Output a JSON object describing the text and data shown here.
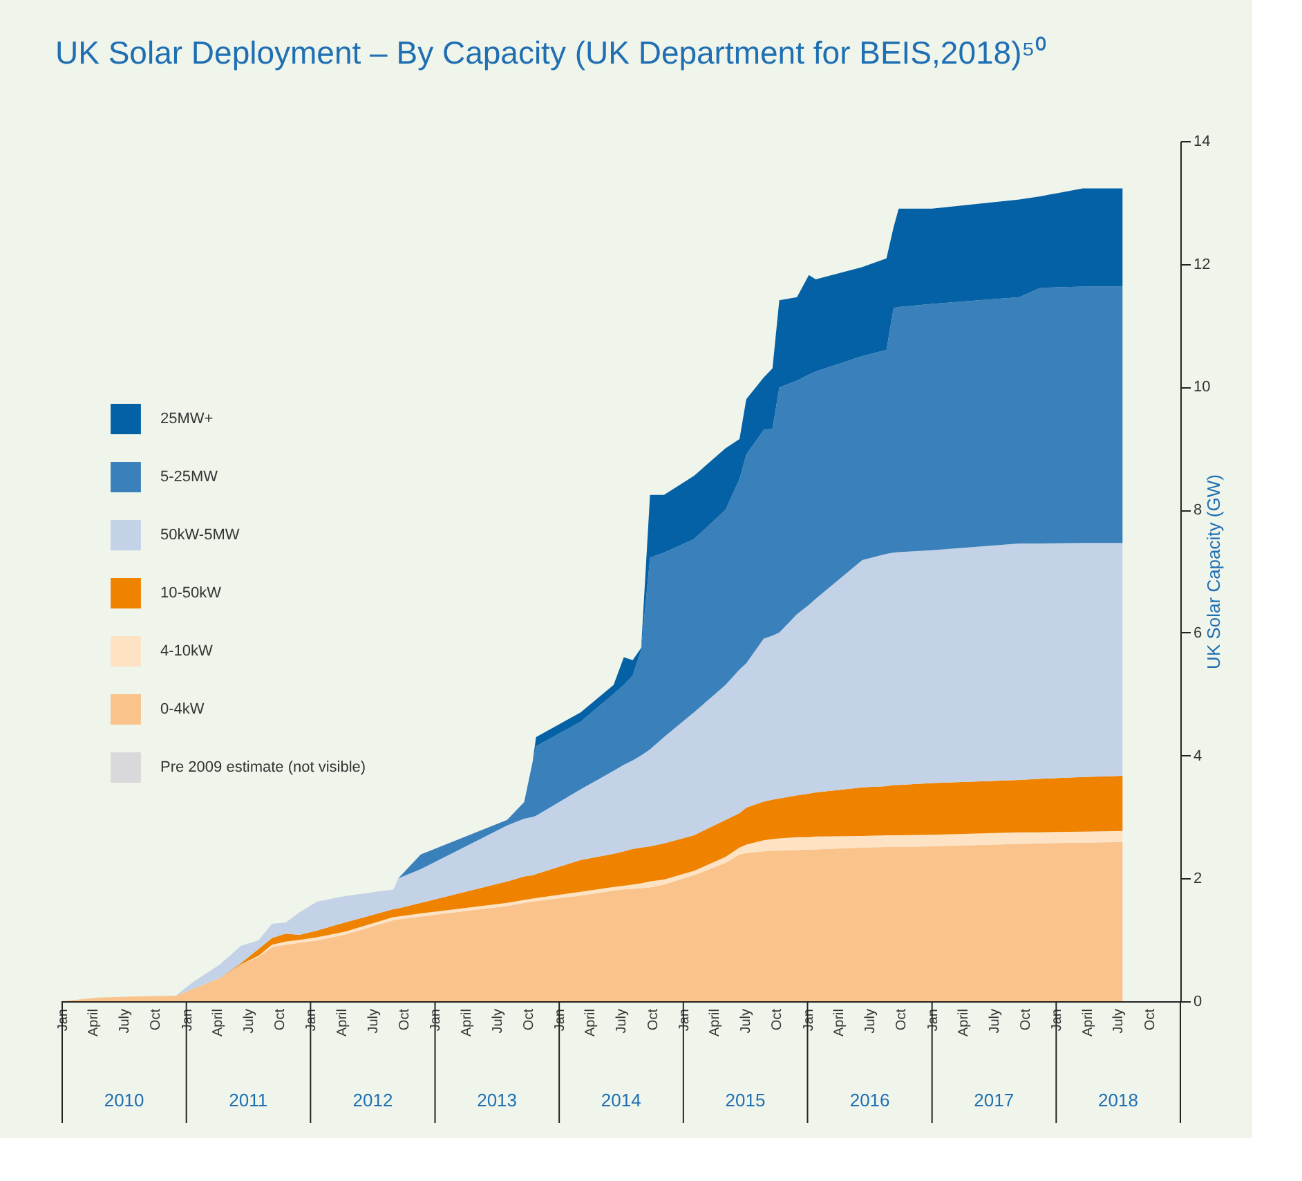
{
  "chart_data": {
    "type": "area",
    "stacked": true,
    "title": "UK Solar Deployment – By Capacity (UK Department for BEIS,2018)⁵⁰",
    "ylabel": "UK Solar Capacity (GW)",
    "x": [
      "2010-01-01",
      "2010-04-15",
      "2010-08-15",
      "2010-12-01",
      "2011-01-20",
      "2011-04-10",
      "2011-06-10",
      "2011-08-01",
      "2011-09-10",
      "2011-10-20",
      "2011-11-30",
      "2012-01-20",
      "2012-04-10",
      "2012-09-01",
      "2012-09-15",
      "2012-11-20",
      "2013-08-01",
      "2013-09-20",
      "2013-10-15",
      "2013-10-25",
      "2014-03-05",
      "2014-06-10",
      "2014-07-10",
      "2014-08-05",
      "2014-08-30",
      "2014-09-25",
      "2014-11-05",
      "2015-02-01",
      "2015-05-05",
      "2015-06-15",
      "2015-07-05",
      "2015-08-25",
      "2015-09-20",
      "2015-10-10",
      "2015-12-01",
      "2016-01-05",
      "2016-01-25",
      "2016-06-10",
      "2016-08-20",
      "2016-09-10",
      "2016-09-25",
      "2017-01-01",
      "2017-09-15",
      "2017-11-15",
      "2018-03-20",
      "2018-07-15"
    ],
    "series": [
      {
        "name": "Pre 2009 estimate (not visible)",
        "color": "#d9d9db",
        "values": [
          null,
          null,
          null,
          null,
          null,
          null,
          null,
          null,
          null,
          null,
          null,
          null,
          null,
          null,
          null,
          null,
          null,
          null,
          null,
          null,
          null,
          null,
          null,
          null,
          null,
          null,
          null,
          null,
          null,
          null,
          null,
          null,
          null,
          null,
          null,
          null,
          null,
          null,
          null,
          null,
          null,
          null,
          null,
          null,
          null,
          null
        ]
      },
      {
        "name": "0-4kW",
        "color": "#f9c38b",
        "values": [
          0,
          0.06,
          0.08,
          0.09,
          0.2,
          0.38,
          0.6,
          0.72,
          0.88,
          0.92,
          0.95,
          0.99,
          1.08,
          1.32,
          1.33,
          1.38,
          1.55,
          1.6,
          1.62,
          1.63,
          1.72,
          1.8,
          1.82,
          1.83,
          1.84,
          1.85,
          1.9,
          2.05,
          2.25,
          2.39,
          2.41,
          2.44,
          2.45,
          2.45,
          2.46,
          2.47,
          2.47,
          2.5,
          2.51,
          2.51,
          2.51,
          2.52,
          2.56,
          2.57,
          2.58,
          2.59
        ]
      },
      {
        "name": "4-10kW",
        "color": "#fde2c4",
        "values": [
          0,
          0,
          0,
          0,
          0,
          0,
          0,
          0.02,
          0.04,
          0.05,
          0.05,
          0.05,
          0.05,
          0.05,
          0.05,
          0.05,
          0.05,
          0.05,
          0.05,
          0.05,
          0.06,
          0.06,
          0.06,
          0.07,
          0.08,
          0.1,
          0.08,
          0.07,
          0.1,
          0.11,
          0.14,
          0.18,
          0.19,
          0.2,
          0.21,
          0.2,
          0.21,
          0.19,
          0.19,
          0.19,
          0.19,
          0.19,
          0.19,
          0.18,
          0.18,
          0.18
        ]
      },
      {
        "name": "10-50kW",
        "color": "#ef8300",
        "values": [
          0,
          0,
          0,
          0,
          0,
          0,
          0.02,
          0.11,
          0.11,
          0.13,
          0.08,
          0.11,
          0.15,
          0.13,
          0.13,
          0.17,
          0.35,
          0.38,
          0.38,
          0.39,
          0.52,
          0.54,
          0.56,
          0.58,
          0.58,
          0.57,
          0.59,
          0.58,
          0.6,
          0.56,
          0.6,
          0.63,
          0.64,
          0.65,
          0.68,
          0.71,
          0.72,
          0.79,
          0.8,
          0.82,
          0.82,
          0.84,
          0.85,
          0.87,
          0.89,
          0.9
        ]
      },
      {
        "name": "50kW-5MW",
        "color": "#c4d2e8",
        "values": [
          0,
          0,
          0,
          0,
          0.11,
          0.22,
          0.28,
          0.14,
          0.23,
          0.18,
          0.37,
          0.47,
          0.43,
          0.32,
          0.49,
          0.55,
          0.91,
          0.94,
          0.95,
          0.95,
          1.15,
          1.35,
          1.41,
          1.44,
          1.5,
          1.58,
          1.73,
          2.0,
          2.2,
          2.34,
          2.35,
          2.65,
          2.67,
          2.7,
          2.95,
          3.07,
          3.15,
          3.7,
          3.78,
          3.78,
          3.79,
          3.79,
          3.85,
          3.83,
          3.81,
          3.79
        ]
      },
      {
        "name": "5-25MW",
        "color": "#3a80ba",
        "values": [
          0,
          0,
          0,
          0,
          0,
          0,
          0,
          0,
          0,
          0,
          0,
          0,
          0,
          0,
          0,
          0.24,
          0.09,
          0.27,
          0.9,
          1.13,
          1.1,
          1.25,
          1.3,
          1.38,
          1.72,
          3.12,
          3.0,
          2.82,
          2.85,
          3.1,
          3.4,
          3.4,
          3.37,
          3.99,
          3.8,
          3.75,
          3.7,
          3.32,
          3.32,
          3.98,
          3.99,
          4.01,
          4.01,
          4.16,
          4.17,
          4.17
        ]
      },
      {
        "name": "25MW+",
        "color": "#0561a6",
        "values": [
          0,
          0,
          0,
          0,
          0,
          0,
          0,
          0,
          0,
          0,
          0,
          0,
          0,
          0,
          0,
          0,
          0,
          0,
          0,
          0.15,
          0.15,
          0.15,
          0.45,
          0.25,
          0.03,
          1.02,
          0.94,
          1.03,
          1.0,
          0.65,
          0.9,
          0.85,
          0.98,
          1.42,
          1.36,
          1.62,
          1.5,
          1.45,
          1.49,
          1.32,
          1.6,
          1.55,
          1.59,
          1.49,
          1.6,
          1.6
        ]
      }
    ],
    "xlim": [
      "2010-01-01",
      "2019-01-01"
    ],
    "xticks": [
      {
        "value": "2010-01-01",
        "label": "Jan"
      },
      {
        "value": "2010-04-01",
        "label": "April"
      },
      {
        "value": "2010-07-01",
        "label": "July"
      },
      {
        "value": "2010-10-01",
        "label": "Oct"
      },
      {
        "value": "2011-01-01",
        "label": "Jan"
      },
      {
        "value": "2011-04-01",
        "label": "April"
      },
      {
        "value": "2011-07-01",
        "label": "July"
      },
      {
        "value": "2011-10-01",
        "label": "Oct"
      },
      {
        "value": "2012-01-01",
        "label": "Jan"
      },
      {
        "value": "2012-04-01",
        "label": "April"
      },
      {
        "value": "2012-07-01",
        "label": "July"
      },
      {
        "value": "2012-10-01",
        "label": "Oct"
      },
      {
        "value": "2013-01-01",
        "label": "Jan"
      },
      {
        "value": "2013-04-01",
        "label": "April"
      },
      {
        "value": "2013-07-01",
        "label": "July"
      },
      {
        "value": "2013-10-01",
        "label": "Oct"
      },
      {
        "value": "2014-01-01",
        "label": "Jan"
      },
      {
        "value": "2014-04-01",
        "label": "April"
      },
      {
        "value": "2014-07-01",
        "label": "July"
      },
      {
        "value": "2014-10-01",
        "label": "Oct"
      },
      {
        "value": "2015-01-01",
        "label": "Jan"
      },
      {
        "value": "2015-04-01",
        "label": "April"
      },
      {
        "value": "2015-07-01",
        "label": "July"
      },
      {
        "value": "2015-10-01",
        "label": "Oct"
      },
      {
        "value": "2016-01-01",
        "label": "Jan"
      },
      {
        "value": "2016-04-01",
        "label": "April"
      },
      {
        "value": "2016-07-01",
        "label": "July"
      },
      {
        "value": "2016-10-01",
        "label": "Oct"
      },
      {
        "value": "2017-01-01",
        "label": "Jan"
      },
      {
        "value": "2017-04-01",
        "label": "April"
      },
      {
        "value": "2017-07-01",
        "label": "July"
      },
      {
        "value": "2017-10-01",
        "label": "Oct"
      },
      {
        "value": "2018-01-01",
        "label": "Jan"
      },
      {
        "value": "2018-04-01",
        "label": "April"
      },
      {
        "value": "2018-07-01",
        "label": "July"
      },
      {
        "value": "2018-10-01",
        "label": "Oct"
      }
    ],
    "x2lim": [
      "2010-01-01",
      "2019-01-01"
    ],
    "x2ticks": [
      {
        "value": "2010-07-02",
        "label": "2010"
      },
      {
        "value": "2011-07-02",
        "label": "2011"
      },
      {
        "value": "2012-07-02",
        "label": "2012"
      },
      {
        "value": "2013-07-02",
        "label": "2013"
      },
      {
        "value": "2014-07-02",
        "label": "2014"
      },
      {
        "value": "2015-07-02",
        "label": "2015"
      },
      {
        "value": "2016-07-02",
        "label": "2016"
      },
      {
        "value": "2017-07-02",
        "label": "2017"
      },
      {
        "value": "2018-07-02",
        "label": "2018"
      }
    ],
    "ylim": [
      0,
      14
    ],
    "yticks": [
      0,
      2,
      4,
      6,
      8,
      10,
      12,
      14
    ],
    "grid": false,
    "legend": "left"
  }
}
